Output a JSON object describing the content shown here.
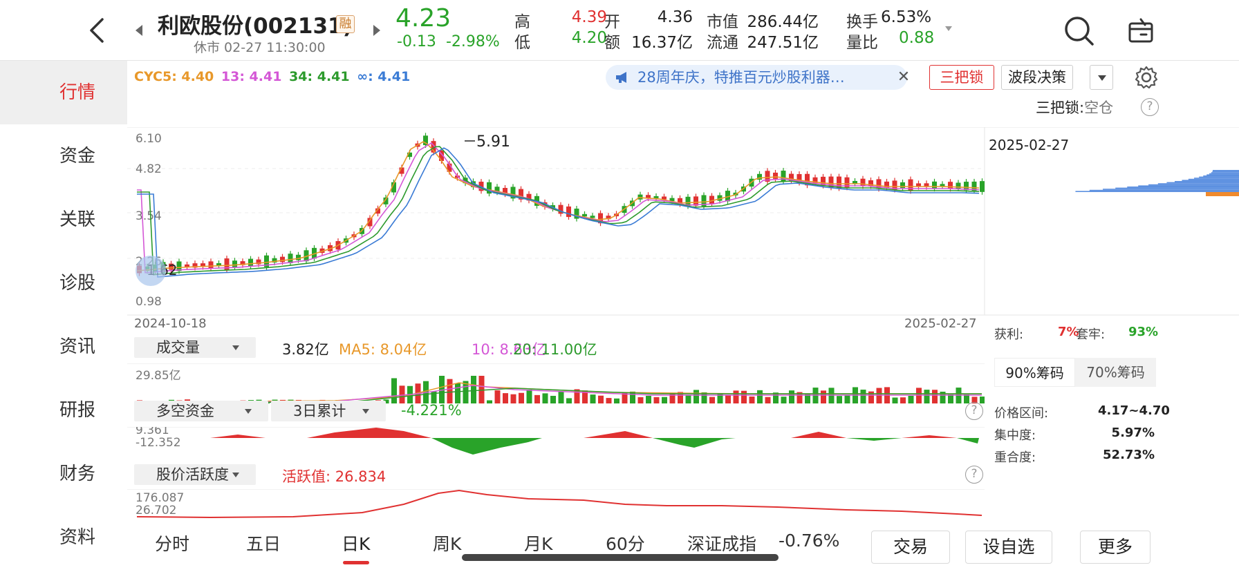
{
  "header": {
    "name": "利欧股份(002131)",
    "badge": "融",
    "status": "休市 02-27 11:30:00",
    "price": "4.23",
    "change": "-0.13",
    "change_pct": "-2.98%",
    "quotes": {
      "high_label": "高",
      "high": "4.39",
      "low_label": "低",
      "low": "4.20",
      "open_label": "开",
      "open": "4.36",
      "amount_label": "额",
      "amount": "16.37亿",
      "mcap_label": "市值",
      "mcap": "286.44亿",
      "float_label": "流通",
      "float": "247.51亿",
      "turnover_label": "换手",
      "turnover": "6.53%",
      "volratio_label": "量比",
      "volratio": "0.88"
    }
  },
  "nav": [
    "行情",
    "资金",
    "关联",
    "诊股",
    "资讯",
    "研报",
    "财务",
    "资料"
  ],
  "ma": {
    "cyc5": "CYC5: 4.40",
    "c13": "13: 4.41",
    "c34": "34: 4.41",
    "cinf": "∞: 4.41"
  },
  "promo": "28周年庆，特推百元炒股利器…",
  "buttons": {
    "slb": "三把锁",
    "bdjc": "波段决策"
  },
  "slb_status": {
    "label": "三把锁:",
    "value": "空仓"
  },
  "kchart": {
    "y_ticks": [
      "6.10",
      "4.82",
      "3.54",
      "2.26",
      "0.98"
    ],
    "high_mark": "5.91",
    "low_mark": "1.62",
    "date_start": "2024-10-18",
    "date_end": "2025-02-27",
    "date_right": "2025-02-27"
  },
  "volume": {
    "selector": "成交量",
    "value": "3.82亿",
    "ma5": "MA5: 8.04亿",
    "ma10": "10: 8.63亿",
    "ma20": "20: 11.00亿",
    "axis_max": "29.85亿"
  },
  "fund": {
    "selector1": "多空资金",
    "selector2": "3日累计",
    "value": "-4.221%",
    "axis_max": "9.361",
    "axis_min": "-12.352"
  },
  "activity": {
    "selector": "股价活跃度",
    "value": "活跃值: 26.834",
    "axis_max": "176.087",
    "axis_min": "26.702"
  },
  "chips": {
    "profit_label": "获利:",
    "profit": "7%",
    "trap_label": "套牢:",
    "trap": "93%",
    "tab90": "90%筹码",
    "tab70": "70%筹码",
    "range_label": "价格区间:",
    "range": "4.17~4.70",
    "conc_label": "集中度:",
    "conc": "5.97%",
    "overlap_label": "重合度:",
    "overlap": "52.73%"
  },
  "bottom_tabs": [
    "分时",
    "五日",
    "日K",
    "周K",
    "月K",
    "60分"
  ],
  "index": {
    "name": "深证成指",
    "change": "-0.76%"
  },
  "bottom_buttons": [
    "交易",
    "设自选",
    "更多"
  ],
  "colors": {
    "up": "#e03131",
    "down": "#29a329",
    "accent": "#e03131"
  }
}
